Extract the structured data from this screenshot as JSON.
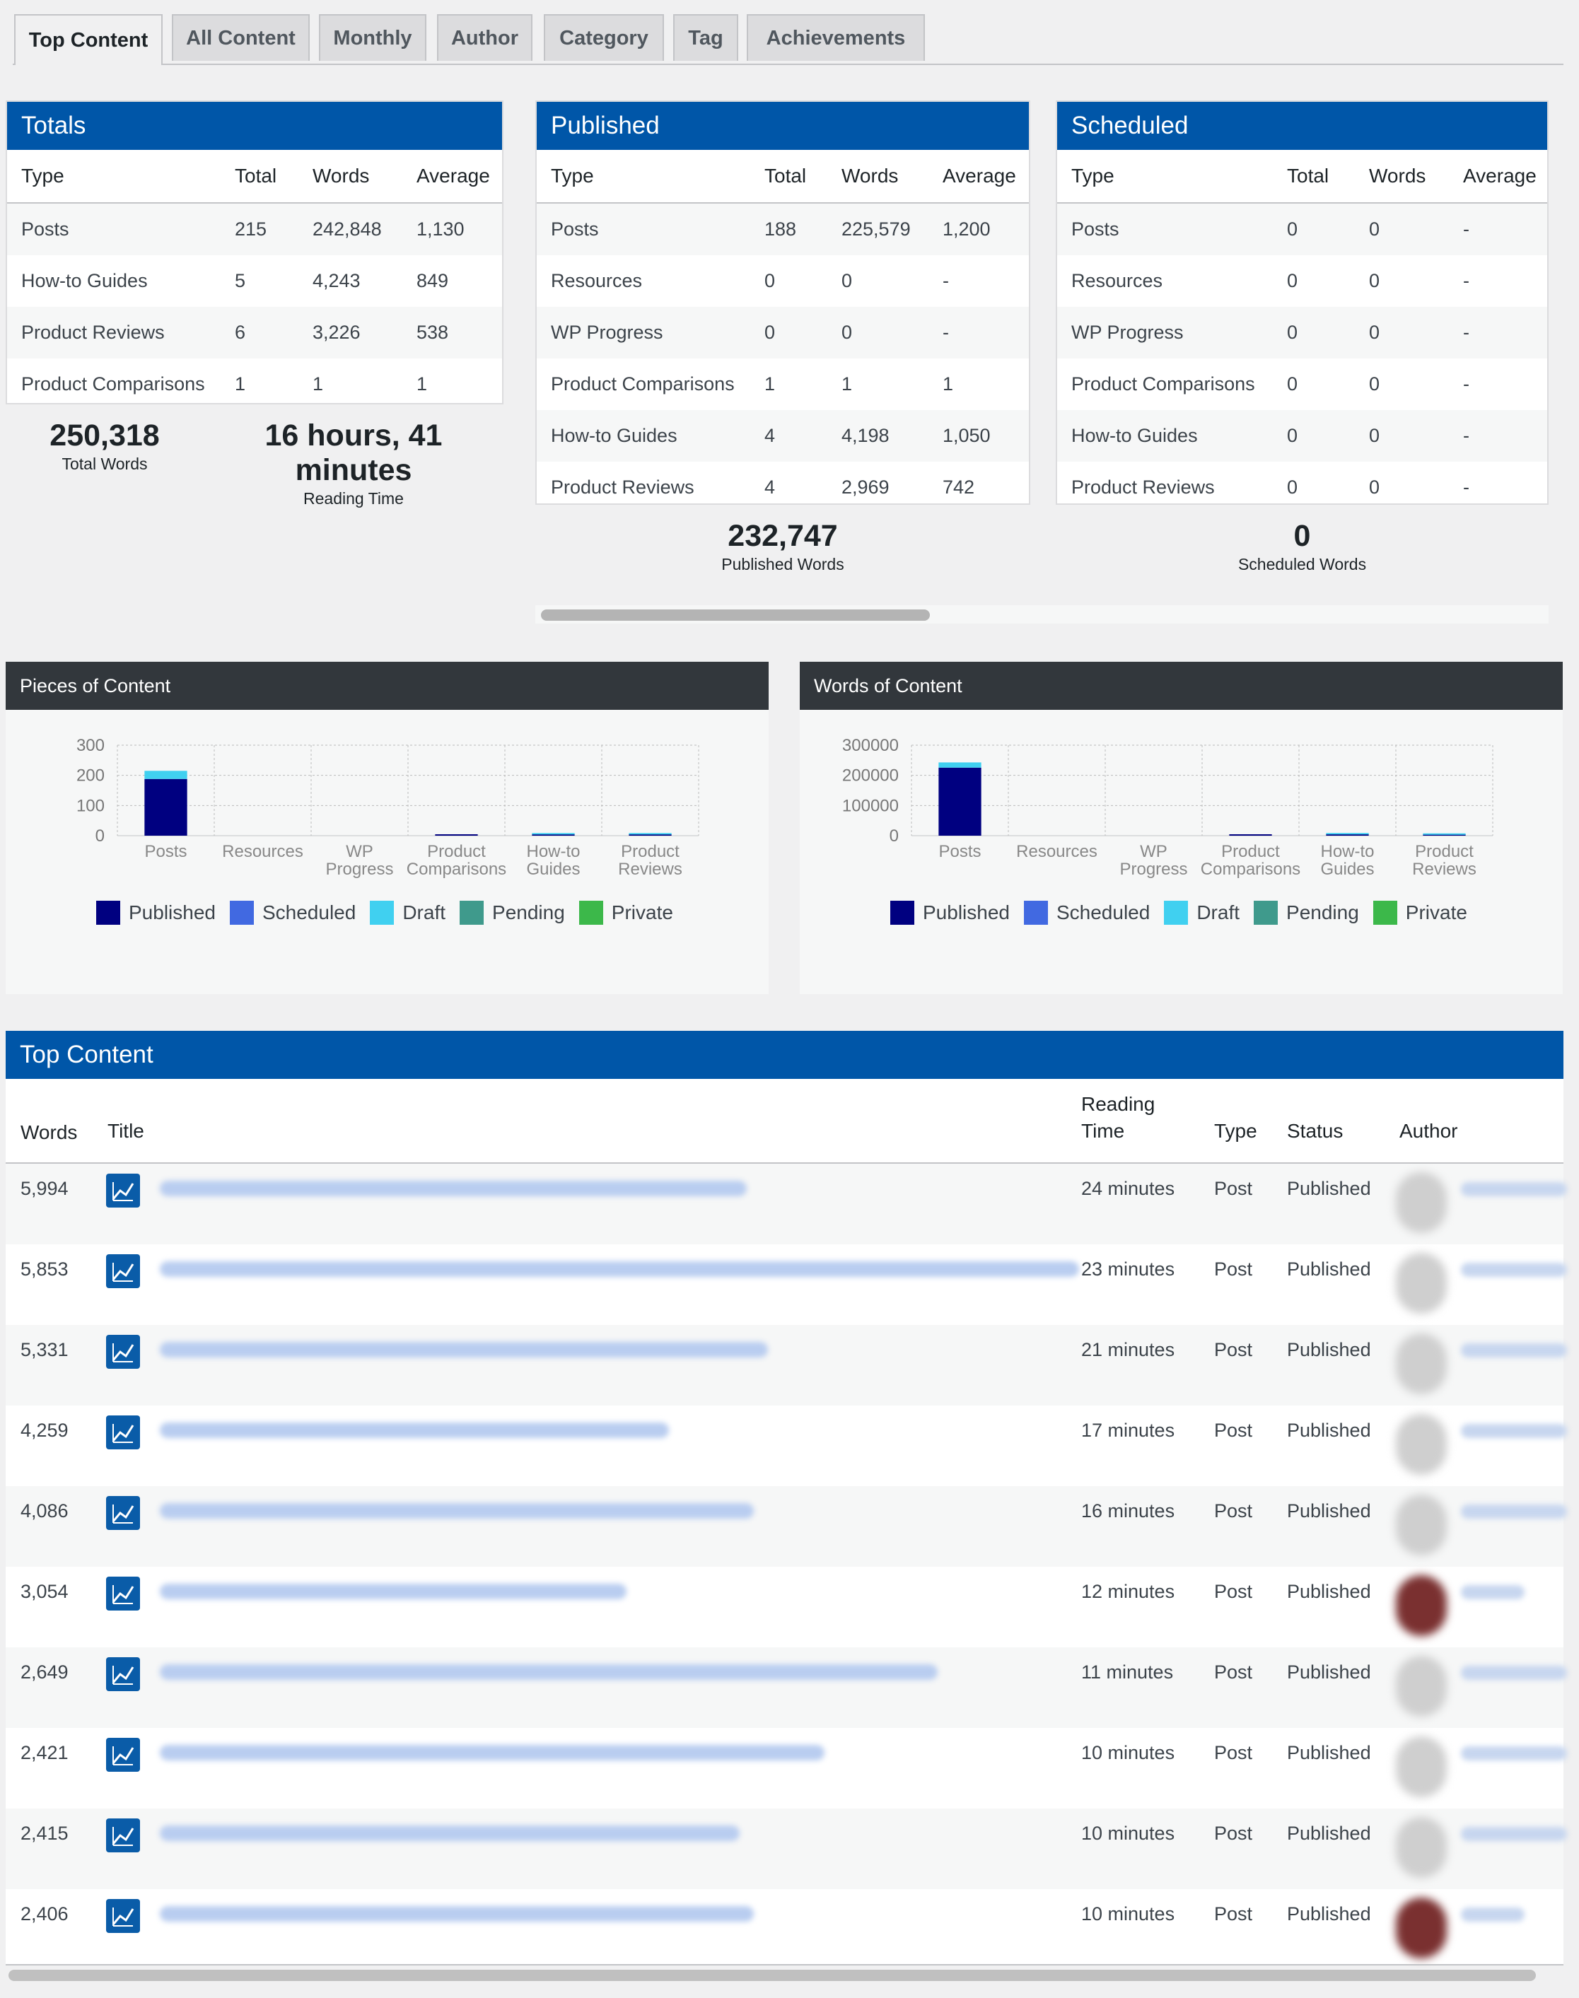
{
  "tabs": [
    "Top Content",
    "All Content",
    "Monthly",
    "Author",
    "Category",
    "Tag",
    "Achievements"
  ],
  "colors": {
    "header_blue": "#0056a8",
    "published": "#000080",
    "scheduled": "#4169e1",
    "draft": "#40d0f0",
    "pending": "#3f9a8c",
    "private": "#3cb84a"
  },
  "totals": {
    "title": "Totals",
    "columns": [
      "Type",
      "Total",
      "Words",
      "Average"
    ],
    "rows": [
      [
        "Posts",
        "215",
        "242,848",
        "1,130"
      ],
      [
        "How-to Guides",
        "5",
        "4,243",
        "849"
      ],
      [
        "Product Reviews",
        "6",
        "3,226",
        "538"
      ],
      [
        "Product Comparisons",
        "1",
        "1",
        "1"
      ]
    ],
    "total_words": "250,318",
    "total_words_label": "Total Words",
    "reading_time": "16 hours, 41 minutes",
    "reading_time_label": "Reading Time"
  },
  "published": {
    "title": "Published",
    "columns": [
      "Type",
      "Total",
      "Words",
      "Average"
    ],
    "rows": [
      [
        "Posts",
        "188",
        "225,579",
        "1,200"
      ],
      [
        "Resources",
        "0",
        "0",
        "-"
      ],
      [
        "WP Progress",
        "0",
        "0",
        "-"
      ],
      [
        "Product Comparisons",
        "1",
        "1",
        "1"
      ],
      [
        "How-to Guides",
        "4",
        "4,198",
        "1,050"
      ],
      [
        "Product Reviews",
        "4",
        "2,969",
        "742"
      ]
    ],
    "words": "232,747",
    "words_label": "Published Words"
  },
  "scheduled": {
    "title": "Scheduled",
    "columns": [
      "Type",
      "Total",
      "Words",
      "Average"
    ],
    "rows": [
      [
        "Posts",
        "0",
        "0",
        "-"
      ],
      [
        "Resources",
        "0",
        "0",
        "-"
      ],
      [
        "WP Progress",
        "0",
        "0",
        "-"
      ],
      [
        "Product Comparisons",
        "0",
        "0",
        "-"
      ],
      [
        "How-to Guides",
        "0",
        "0",
        "-"
      ],
      [
        "Product Reviews",
        "0",
        "0",
        "-"
      ]
    ],
    "words": "0",
    "words_label": "Scheduled Words"
  },
  "chart_data": [
    {
      "type": "bar",
      "title": "Pieces of Content",
      "categories": [
        "Posts",
        "Resources",
        "WP Progress",
        "Product Comparisons",
        "How-to Guides",
        "Product Reviews"
      ],
      "category_lines": [
        [
          "Posts"
        ],
        [
          "Resources"
        ],
        [
          "WP",
          "Progress"
        ],
        [
          "Product",
          "Comparisons"
        ],
        [
          "How-to",
          "Guides"
        ],
        [
          "Product",
          "Reviews"
        ]
      ],
      "stacked": true,
      "series": [
        {
          "name": "Published",
          "values": [
            188,
            0,
            0,
            1,
            4,
            4
          ]
        },
        {
          "name": "Scheduled",
          "values": [
            0,
            0,
            0,
            0,
            0,
            0
          ]
        },
        {
          "name": "Draft",
          "values": [
            27,
            0,
            0,
            0,
            1,
            2
          ]
        },
        {
          "name": "Pending",
          "values": [
            0,
            0,
            0,
            0,
            0,
            0
          ]
        },
        {
          "name": "Private",
          "values": [
            0,
            0,
            0,
            0,
            0,
            0
          ]
        }
      ],
      "yticks": [
        "0",
        "100",
        "200",
        "300"
      ],
      "ylim": [
        0,
        300
      ],
      "grid": true,
      "legend": "bottom"
    },
    {
      "type": "bar",
      "title": "Words of Content",
      "categories": [
        "Posts",
        "Resources",
        "WP Progress",
        "Product Comparisons",
        "How-to Guides",
        "Product Reviews"
      ],
      "category_lines": [
        [
          "Posts"
        ],
        [
          "Resources"
        ],
        [
          "WP",
          "Progress"
        ],
        [
          "Product",
          "Comparisons"
        ],
        [
          "How-to",
          "Guides"
        ],
        [
          "Product",
          "Reviews"
        ]
      ],
      "stacked": true,
      "series": [
        {
          "name": "Published",
          "values": [
            225579,
            0,
            0,
            1,
            4198,
            2969
          ]
        },
        {
          "name": "Scheduled",
          "values": [
            0,
            0,
            0,
            0,
            0,
            0
          ]
        },
        {
          "name": "Draft",
          "values": [
            17269,
            0,
            0,
            0,
            45,
            257
          ]
        },
        {
          "name": "Pending",
          "values": [
            0,
            0,
            0,
            0,
            0,
            0
          ]
        },
        {
          "name": "Private",
          "values": [
            0,
            0,
            0,
            0,
            0,
            0
          ]
        }
      ],
      "yticks": [
        "0",
        "100000",
        "200000",
        "300000"
      ],
      "ylim": [
        0,
        300000
      ],
      "grid": true,
      "legend": "bottom"
    }
  ],
  "top_content": {
    "title": "Top Content",
    "headers": {
      "words": "Words",
      "title": "Title",
      "reading_time_1": "Reading",
      "reading_time_2": "Time",
      "type": "Type",
      "status": "Status",
      "author": "Author"
    },
    "rows": [
      {
        "words": "5,994",
        "reading": "24 minutes",
        "type": "Post",
        "status": "Published"
      },
      {
        "words": "5,853",
        "reading": "23 minutes",
        "type": "Post",
        "status": "Published"
      },
      {
        "words": "5,331",
        "reading": "21 minutes",
        "type": "Post",
        "status": "Published"
      },
      {
        "words": "4,259",
        "reading": "17 minutes",
        "type": "Post",
        "status": "Published"
      },
      {
        "words": "4,086",
        "reading": "16 minutes",
        "type": "Post",
        "status": "Published"
      },
      {
        "words": "3,054",
        "reading": "12 minutes",
        "type": "Post",
        "status": "Published"
      },
      {
        "words": "2,649",
        "reading": "11 minutes",
        "type": "Post",
        "status": "Published"
      },
      {
        "words": "2,421",
        "reading": "10 minutes",
        "type": "Post",
        "status": "Published"
      },
      {
        "words": "2,415",
        "reading": "10 minutes",
        "type": "Post",
        "status": "Published"
      },
      {
        "words": "2,406",
        "reading": "10 minutes",
        "type": "Post",
        "status": "Published"
      }
    ]
  }
}
